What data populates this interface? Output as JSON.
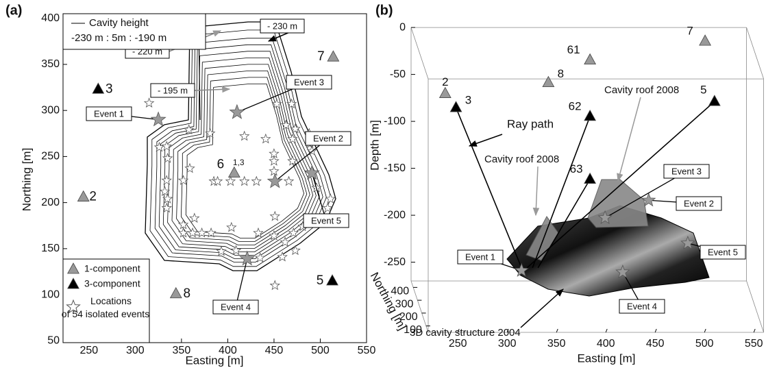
{
  "chart_data": [
    {
      "type": "scatter",
      "panel_label": "(a)",
      "xlabel": "Easting [m]",
      "ylabel": "Northing [m]",
      "xlim": [
        222,
        550
      ],
      "ylim": [
        48,
        405
      ],
      "xticks": [
        250,
        300,
        350,
        400,
        450,
        500,
        550
      ],
      "yticks": [
        50,
        100,
        150,
        200,
        250,
        300,
        350,
        400
      ],
      "cavity_legend": {
        "label": "Cavity height",
        "range": "-230 m : 5m : -190 m"
      },
      "contour_labels": [
        "- 230 m",
        "- 220 m",
        "- 195 m"
      ],
      "station_note": "1,3",
      "series": [
        {
          "name": "1-component",
          "color": "#999999",
          "marker": "triangle",
          "x": [
            244,
            514,
            344,
            407
          ],
          "y": [
            206,
            358,
            101,
            232
          ],
          "point_labels": [
            "2",
            "7",
            "8",
            "6"
          ]
        },
        {
          "name": "3-component",
          "color": "#000000",
          "marker": "triangle",
          "x": [
            260,
            513
          ],
          "y": [
            323,
            115
          ],
          "point_labels": [
            "3",
            "5"
          ]
        },
        {
          "name": "Locations of 54 isolated events",
          "color": "#ffffff",
          "marker": "star",
          "x": [
            315,
            326,
            334,
            358,
            381,
            418,
            441,
            453,
            469,
            473,
            463,
            470,
            335,
            334,
            332,
            335,
            334,
            352,
            359,
            385,
            389,
            403,
            418,
            431,
            450,
            450,
            450,
            466,
            470,
            488,
            489,
            491,
            496,
            511,
            508,
            352,
            364,
            352,
            362,
            372,
            382,
            404,
            433,
            451,
            450,
            462,
            471,
            481,
            393,
            409,
            435,
            459,
            473,
            451
          ],
          "y": [
            308,
            260,
            261,
            279,
            275,
            272,
            269,
            307,
            307,
            280,
            284,
            269,
            248,
            224,
            212,
            204,
            194,
            224,
            237,
            223,
            223,
            223,
            223,
            223,
            253,
            245,
            234,
            223,
            245,
            275,
            264,
            256,
            216,
            204,
            194,
            176,
            183,
            167,
            167,
            167,
            167,
            173,
            167,
            185,
            164,
            157,
            167,
            174,
            147,
            148,
            140,
            141,
            148,
            110
          ]
        }
      ],
      "events": {
        "color": "#999999",
        "x": [
          325,
          451,
          410,
          421,
          491
        ],
        "y": [
          290,
          223,
          298,
          139,
          232
        ],
        "labels": [
          "Event 1",
          "Event 2",
          "Event 3",
          "Event 4",
          "Event 5"
        ]
      }
    },
    {
      "type": "scatter3d",
      "panel_label": "(b)",
      "xlabel": "Easting [m]",
      "ylabel": "Northing [m]",
      "zlabel": "Depth [m]",
      "xlim": [
        220,
        560
      ],
      "ylim": [
        50,
        450
      ],
      "zlim": [
        -270,
        0
      ],
      "xticks": [
        250,
        300,
        350,
        400,
        450,
        500,
        550
      ],
      "yticks": [
        100,
        200,
        300,
        400
      ],
      "zticks": [
        -250,
        -200,
        -150,
        -100,
        -50,
        0
      ],
      "series": [
        {
          "color": "#999999",
          "x": [
            244,
            514,
            344,
            397
          ],
          "y": [
            206,
            358,
            101,
            350
          ],
          "z": [
            -37,
            -2,
            -11,
            -21
          ],
          "point_labels": [
            "2",
            "7",
            "8",
            "61"
          ]
        },
        {
          "color": "#000000",
          "x": [
            260,
            513,
            397,
            397
          ],
          "y": [
            323,
            115,
            350,
            350
          ],
          "z": [
            -68,
            -33,
            -81,
            -148
          ],
          "point_labels": [
            "3",
            "5",
            "62",
            "63"
          ]
        }
      ],
      "events": {
        "color": "#999999",
        "x": [
          325,
          451,
          410,
          421,
          491
        ],
        "y": [
          290,
          223,
          298,
          139,
          232
        ],
        "z": [
          -237,
          -153,
          -182,
          -218,
          -200
        ],
        "labels": [
          "Event 1",
          "Event 2",
          "Event 3",
          "Event 4",
          "Event 5"
        ]
      },
      "annotations": [
        "Ray path",
        "Cavity roof 2008",
        "Cavity roof 2008",
        "3D cavity structure 2004"
      ]
    }
  ]
}
